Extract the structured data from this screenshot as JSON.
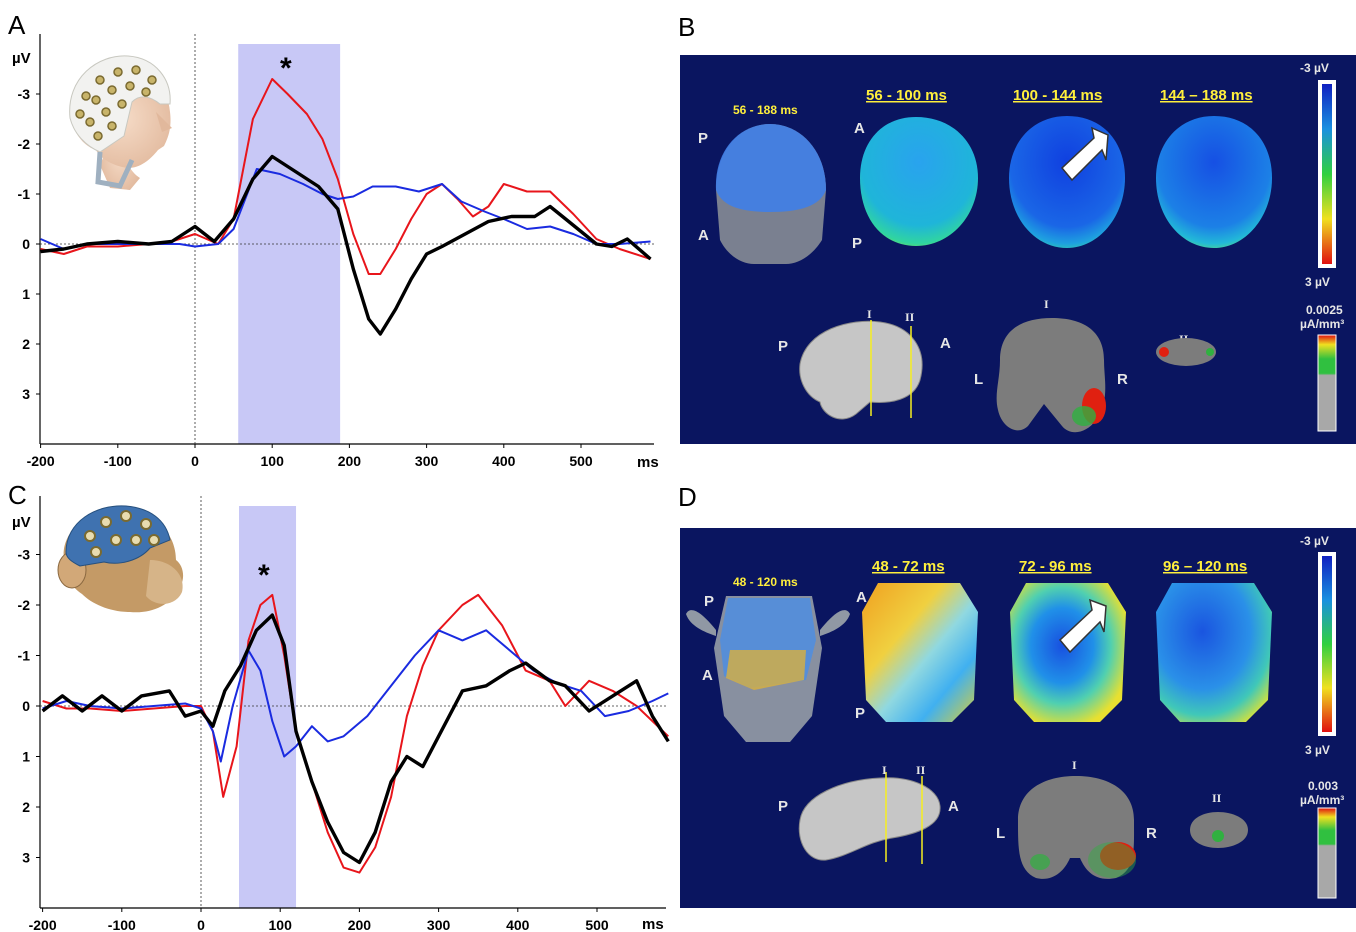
{
  "panels": {
    "A": {
      "label": "A"
    },
    "B": {
      "label": "B"
    },
    "C": {
      "label": "C"
    },
    "D": {
      "label": "D"
    }
  },
  "erp_units": {
    "y": "µV",
    "x": "ms"
  },
  "significance_marker": "*",
  "chart_data": [
    {
      "type": "line",
      "panel": "A",
      "xlabel": "ms",
      "ylabel": "µV",
      "xlim": [
        -200,
        590
      ],
      "ylim": [
        4,
        -4
      ],
      "y_inverted": true,
      "x_ticks": [
        -200,
        -100,
        0,
        100,
        200,
        300,
        400,
        500
      ],
      "y_ticks": [
        -3,
        -2,
        -1,
        0,
        1,
        2,
        3
      ],
      "highlight_window": [
        56,
        188
      ],
      "annotation": "*",
      "series": [
        {
          "color": "#e8151b",
          "points": [
            [
              -200,
              0.1
            ],
            [
              -170,
              0.2
            ],
            [
              -140,
              0.05
            ],
            [
              -100,
              0.05
            ],
            [
              -60,
              0
            ],
            [
              -30,
              -0.05
            ],
            [
              0,
              -0.2
            ],
            [
              30,
              0
            ],
            [
              50,
              -0.5
            ],
            [
              75,
              -2.5
            ],
            [
              100,
              -3.3
            ],
            [
              120,
              -3.0
            ],
            [
              145,
              -2.6
            ],
            [
              165,
              -2.1
            ],
            [
              185,
              -1.3
            ],
            [
              205,
              -0.2
            ],
            [
              225,
              0.6
            ],
            [
              240,
              0.6
            ],
            [
              260,
              0.1
            ],
            [
              280,
              -0.5
            ],
            [
              300,
              -1.0
            ],
            [
              320,
              -1.2
            ],
            [
              340,
              -0.9
            ],
            [
              360,
              -0.55
            ],
            [
              380,
              -0.75
            ],
            [
              400,
              -1.2
            ],
            [
              430,
              -1.05
            ],
            [
              460,
              -1.05
            ],
            [
              490,
              -0.6
            ],
            [
              520,
              -0.1
            ],
            [
              550,
              0.1
            ],
            [
              590,
              0.3
            ]
          ]
        },
        {
          "color": "#1a2be0",
          "points": [
            [
              -200,
              -0.1
            ],
            [
              -170,
              0.1
            ],
            [
              -140,
              0
            ],
            [
              -100,
              0
            ],
            [
              -60,
              0
            ],
            [
              -20,
              0
            ],
            [
              0,
              0.05
            ],
            [
              30,
              0
            ],
            [
              50,
              -0.3
            ],
            [
              80,
              -1.5
            ],
            [
              110,
              -1.4
            ],
            [
              140,
              -1.2
            ],
            [
              165,
              -1.0
            ],
            [
              185,
              -0.9
            ],
            [
              205,
              -0.95
            ],
            [
              230,
              -1.15
            ],
            [
              260,
              -1.15
            ],
            [
              290,
              -1.05
            ],
            [
              320,
              -1.2
            ],
            [
              345,
              -0.85
            ],
            [
              375,
              -0.65
            ],
            [
              400,
              -0.5
            ],
            [
              430,
              -0.3
            ],
            [
              460,
              -0.35
            ],
            [
              490,
              -0.2
            ],
            [
              520,
              0
            ],
            [
              550,
              0
            ],
            [
              590,
              -0.05
            ]
          ]
        },
        {
          "color": "#000000",
          "points": [
            [
              -200,
              0.15
            ],
            [
              -170,
              0.1
            ],
            [
              -140,
              0
            ],
            [
              -100,
              -0.05
            ],
            [
              -60,
              0
            ],
            [
              -30,
              -0.05
            ],
            [
              0,
              -0.35
            ],
            [
              25,
              -0.05
            ],
            [
              50,
              -0.5
            ],
            [
              75,
              -1.3
            ],
            [
              100,
              -1.75
            ],
            [
              130,
              -1.45
            ],
            [
              160,
              -1.15
            ],
            [
              185,
              -0.7
            ],
            [
              205,
              0.5
            ],
            [
              225,
              1.5
            ],
            [
              240,
              1.8
            ],
            [
              260,
              1.3
            ],
            [
              280,
              0.7
            ],
            [
              300,
              0.2
            ],
            [
              320,
              0.05
            ],
            [
              350,
              -0.2
            ],
            [
              380,
              -0.45
            ],
            [
              410,
              -0.55
            ],
            [
              440,
              -0.55
            ],
            [
              460,
              -0.75
            ],
            [
              480,
              -0.5
            ],
            [
              500,
              -0.25
            ],
            [
              520,
              0
            ],
            [
              540,
              0.05
            ],
            [
              560,
              -0.1
            ],
            [
              590,
              0.3
            ]
          ]
        }
      ]
    },
    {
      "type": "line",
      "panel": "C",
      "xlabel": "ms",
      "ylabel": "µV",
      "xlim": [
        -200,
        590
      ],
      "ylim": [
        4,
        -4
      ],
      "y_inverted": true,
      "x_ticks": [
        -200,
        -100,
        0,
        100,
        200,
        300,
        400,
        500
      ],
      "y_ticks": [
        -3,
        -2,
        -1,
        0,
        1,
        2,
        3
      ],
      "highlight_window": [
        48,
        120
      ],
      "annotation": "*",
      "series": [
        {
          "color": "#e8151b",
          "points": [
            [
              -200,
              -0.1
            ],
            [
              -170,
              0.05
            ],
            [
              -140,
              0.05
            ],
            [
              -100,
              0.1
            ],
            [
              -60,
              0.05
            ],
            [
              -20,
              0
            ],
            [
              0,
              0
            ],
            [
              15,
              0.5
            ],
            [
              28,
              1.8
            ],
            [
              45,
              0.8
            ],
            [
              60,
              -1.3
            ],
            [
              75,
              -2.0
            ],
            [
              90,
              -2.2
            ],
            [
              105,
              -1.0
            ],
            [
              120,
              0.5
            ],
            [
              140,
              1.5
            ],
            [
              160,
              2.5
            ],
            [
              180,
              3.2
            ],
            [
              200,
              3.3
            ],
            [
              220,
              2.8
            ],
            [
              240,
              1.8
            ],
            [
              260,
              0.2
            ],
            [
              280,
              -0.8
            ],
            [
              300,
              -1.5
            ],
            [
              330,
              -2.0
            ],
            [
              350,
              -2.2
            ],
            [
              380,
              -1.6
            ],
            [
              410,
              -0.7
            ],
            [
              440,
              -0.5
            ],
            [
              460,
              0
            ],
            [
              490,
              -0.5
            ],
            [
              520,
              -0.3
            ],
            [
              550,
              0
            ],
            [
              590,
              0.6
            ]
          ]
        },
        {
          "color": "#1a2be0",
          "points": [
            [
              -200,
              0.05
            ],
            [
              -170,
              -0.1
            ],
            [
              -140,
              0
            ],
            [
              -100,
              0.05
            ],
            [
              -60,
              0
            ],
            [
              -20,
              -0.05
            ],
            [
              0,
              0.05
            ],
            [
              15,
              0.5
            ],
            [
              25,
              1.1
            ],
            [
              40,
              0
            ],
            [
              60,
              -1.1
            ],
            [
              75,
              -0.7
            ],
            [
              90,
              0.3
            ],
            [
              105,
              1.0
            ],
            [
              120,
              0.8
            ],
            [
              140,
              0.4
            ],
            [
              160,
              0.7
            ],
            [
              180,
              0.6
            ],
            [
              210,
              0.2
            ],
            [
              240,
              -0.4
            ],
            [
              270,
              -1.0
            ],
            [
              300,
              -1.5
            ],
            [
              330,
              -1.3
            ],
            [
              360,
              -1.5
            ],
            [
              390,
              -1.1
            ],
            [
              420,
              -0.7
            ],
            [
              450,
              -0.45
            ],
            [
              480,
              -0.3
            ],
            [
              510,
              0.2
            ],
            [
              540,
              0.1
            ],
            [
              570,
              -0.1
            ],
            [
              590,
              -0.25
            ]
          ]
        },
        {
          "color": "#000000",
          "points": [
            [
              -200,
              0.1
            ],
            [
              -175,
              -0.2
            ],
            [
              -150,
              0.1
            ],
            [
              -125,
              -0.2
            ],
            [
              -100,
              0.1
            ],
            [
              -75,
              -0.2
            ],
            [
              -40,
              -0.3
            ],
            [
              -20,
              0.2
            ],
            [
              0,
              0.1
            ],
            [
              15,
              0.4
            ],
            [
              30,
              -0.3
            ],
            [
              50,
              -0.8
            ],
            [
              70,
              -1.5
            ],
            [
              90,
              -1.8
            ],
            [
              105,
              -1.2
            ],
            [
              120,
              0.5
            ],
            [
              140,
              1.5
            ],
            [
              160,
              2.3
            ],
            [
              180,
              2.9
            ],
            [
              200,
              3.1
            ],
            [
              220,
              2.5
            ],
            [
              240,
              1.5
            ],
            [
              260,
              1.0
            ],
            [
              280,
              1.2
            ],
            [
              300,
              0.6
            ],
            [
              330,
              -0.3
            ],
            [
              360,
              -0.4
            ],
            [
              390,
              -0.7
            ],
            [
              410,
              -0.85
            ],
            [
              440,
              -0.5
            ],
            [
              460,
              -0.4
            ],
            [
              490,
              0.1
            ],
            [
              520,
              -0.2
            ],
            [
              550,
              -0.5
            ],
            [
              570,
              0.2
            ],
            [
              590,
              0.7
            ]
          ]
        }
      ]
    }
  ],
  "panel_B": {
    "head_window": "56 - 188 ms",
    "head_labels": {
      "P": "P",
      "A": "A"
    },
    "windows": [
      {
        "label": "56 - 100 ms",
        "map_color": "#2aa0e8"
      },
      {
        "label": "100 - 144 ms",
        "map_color": "#1a55e0"
      },
      {
        "label": "144 – 188 ms",
        "map_color": "#1e72e4"
      }
    ],
    "map_labels": {
      "A": "A",
      "P": "P"
    },
    "colorscale": {
      "top": "-3 µV",
      "bottom": "3 µV"
    },
    "brain_labels": {
      "P": "P",
      "A": "A",
      "L": "L",
      "R": "R",
      "I": "I",
      "II": "II"
    },
    "source_scale": {
      "value": "0.0025",
      "unit": "µA/mm³"
    }
  },
  "panel_D": {
    "head_window": "48 - 120 ms",
    "head_labels": {
      "P": "P",
      "A": "A"
    },
    "windows": [
      {
        "label": "48 - 72 ms"
      },
      {
        "label": "72 - 96 ms"
      },
      {
        "label": "96 – 120 ms"
      }
    ],
    "map_labels": {
      "A": "A",
      "P": "P"
    },
    "colorscale": {
      "top": "-3 µV",
      "bottom": "3 µV"
    },
    "brain_labels": {
      "P": "P",
      "A": "A",
      "L": "L",
      "R": "R",
      "I": "I",
      "II": "II"
    },
    "source_scale": {
      "value": "0.003",
      "unit": "µA/mm³"
    }
  }
}
